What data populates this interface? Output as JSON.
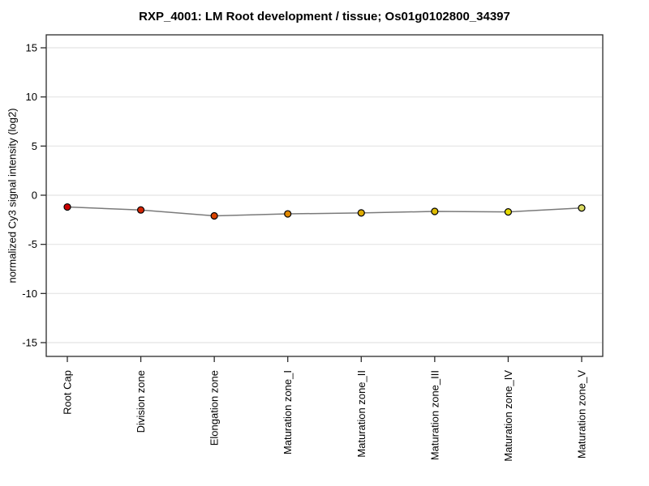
{
  "chart_data": {
    "type": "line",
    "title": "RXP_4001: LM Root development / tissue; Os01g0102800_34397",
    "xlabel": "",
    "ylabel": "normalized Cy3 signal intensity (log2)",
    "categories": [
      "Root Cap",
      "Division zone",
      "Elongation zone",
      "Maturation zone_I",
      "Maturation zone_II",
      "Maturation zone_III",
      "Maturation zone_IV",
      "Maturation zone_V"
    ],
    "series": [
      {
        "name": "normalized Cy3 signal intensity",
        "values": [
          -1.2,
          -1.5,
          -2.1,
          -1.9,
          -1.8,
          -1.65,
          -1.7,
          -1.3
        ],
        "errors": [
          0.1,
          0.35,
          0.1,
          0.2,
          0.15,
          0.2,
          0.3,
          0.1
        ],
        "point_colors": [
          "#cc0000",
          "#d32300",
          "#d94400",
          "#e08800",
          "#ddaa00",
          "#ddbb00",
          "#e5d900",
          "#d8d860"
        ]
      }
    ],
    "yticks": [
      15,
      10,
      5,
      0,
      -5,
      -10,
      -15
    ],
    "ylim": [
      -16.4,
      16.4
    ],
    "grid": true,
    "legend": "none",
    "colors": {
      "line": "#7a7a7a",
      "grid": "#e4e4e4",
      "frame": "#2b2b2b",
      "tick": "#2b2b2b",
      "marker_outline": "#000000",
      "error_bar": "#1a1a1a",
      "text": "#000000"
    }
  }
}
